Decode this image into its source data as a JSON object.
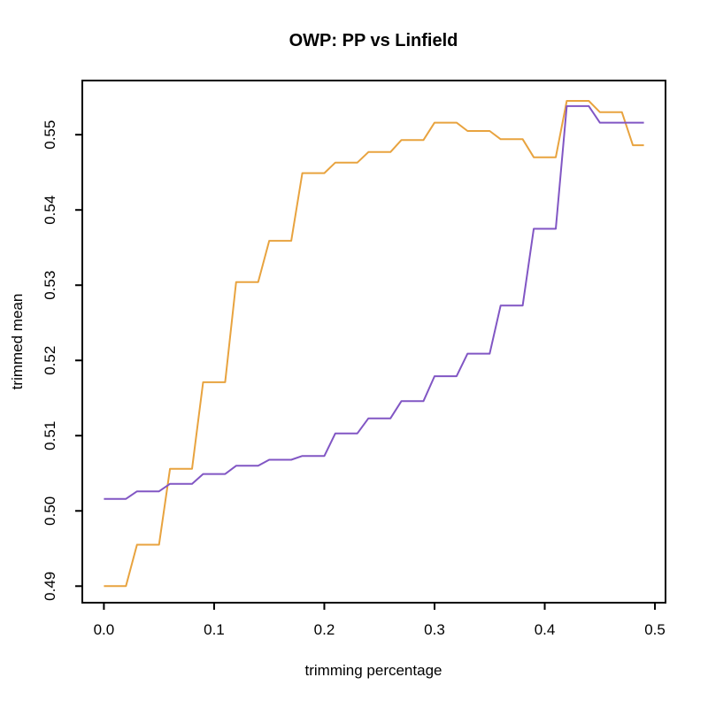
{
  "title": "OWP: PP vs Linfield",
  "colors": {
    "background": "#ffffff",
    "axis": "#000000",
    "orange_series": "#E8A33F",
    "purple_series": "#8156C4"
  },
  "chart_data": {
    "type": "line",
    "title": "OWP: PP vs Linfield",
    "xlabel": "trimming percentage",
    "ylabel": "trimmed mean",
    "x_start": 0.0,
    "x_step": 0.01,
    "xlim": [
      -0.0196,
      0.5096
    ],
    "ylim": [
      0.4878,
      0.5572
    ],
    "x_ticks": [
      0.0,
      0.1,
      0.2,
      0.3,
      0.4,
      0.5
    ],
    "x_tick_labels": [
      "0.0",
      "0.1",
      "0.2",
      "0.3",
      "0.4",
      "0.5"
    ],
    "y_ticks": [
      0.49,
      0.5,
      0.51,
      0.52,
      0.53,
      0.54,
      0.55
    ],
    "y_tick_labels": [
      "0.49",
      "0.50",
      "0.51",
      "0.52",
      "0.53",
      "0.54",
      "0.55"
    ],
    "grid": false,
    "legend_position": "none",
    "series": [
      {
        "name": "PP",
        "color": "#E8A33F",
        "values": [
          0.49,
          0.49,
          0.49,
          0.4955,
          0.4955,
          0.4955,
          0.5056,
          0.5056,
          0.5056,
          0.5171,
          0.5171,
          0.5171,
          0.5304,
          0.5304,
          0.5304,
          0.5359,
          0.5359,
          0.5359,
          0.5449,
          0.5449,
          0.5449,
          0.5463,
          0.5463,
          0.5463,
          0.5477,
          0.5477,
          0.5477,
          0.5493,
          0.5493,
          0.5493,
          0.5516,
          0.5516,
          0.5516,
          0.5505,
          0.5505,
          0.5505,
          0.5494,
          0.5494,
          0.5494,
          0.547,
          0.547,
          0.547,
          0.5545,
          0.5545,
          0.5545,
          0.553,
          0.553,
          0.553,
          0.5486,
          0.5486
        ]
      },
      {
        "name": "Linfield",
        "color": "#8156C4",
        "values": [
          0.5016,
          0.5016,
          0.5016,
          0.5026,
          0.5026,
          0.5026,
          0.5036,
          0.5036,
          0.5036,
          0.5049,
          0.5049,
          0.5049,
          0.506,
          0.506,
          0.506,
          0.5068,
          0.5068,
          0.5068,
          0.5073,
          0.5073,
          0.5073,
          0.5103,
          0.5103,
          0.5103,
          0.5123,
          0.5123,
          0.5123,
          0.5146,
          0.5146,
          0.5146,
          0.5179,
          0.5179,
          0.5179,
          0.5209,
          0.5209,
          0.5209,
          0.5273,
          0.5273,
          0.5273,
          0.5375,
          0.5375,
          0.5375,
          0.5538,
          0.5538,
          0.5538,
          0.5516,
          0.5516,
          0.5516,
          0.5516,
          0.5516
        ]
      }
    ]
  }
}
